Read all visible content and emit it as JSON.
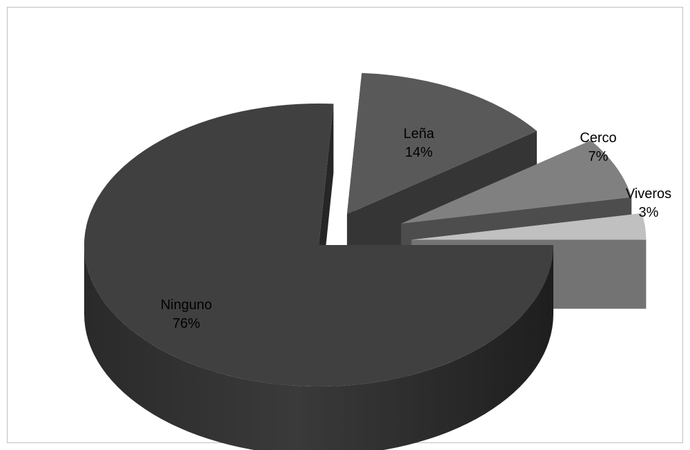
{
  "chart_data": {
    "type": "pie",
    "style": "3d-exploded",
    "categories": [
      "Ninguno",
      "Leña",
      "Cerco",
      "Viveros"
    ],
    "values": [
      76,
      14,
      7,
      3
    ],
    "value_labels": [
      "76%",
      "14%",
      "7%",
      "3%"
    ],
    "colors": {
      "Ninguno": "#404040",
      "Leña": "#595959",
      "Cerco": "#808080",
      "Viveros": "#c0c0c0"
    },
    "legend": "none",
    "data_labels": "category-and-percent"
  }
}
